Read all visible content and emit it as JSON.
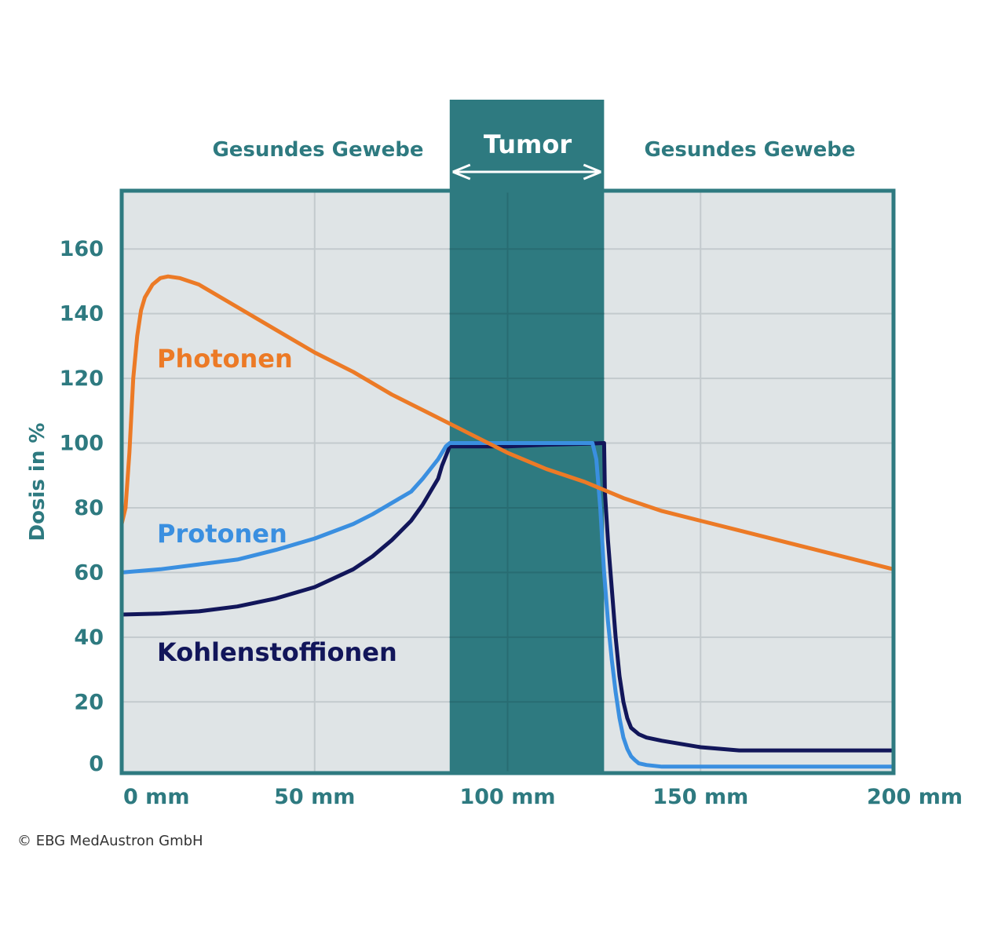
{
  "chart_data": {
    "type": "line",
    "ylabel": "Dosis in %",
    "xlabel": "",
    "xlim": [
      0,
      200
    ],
    "ylim": [
      -2,
      178
    ],
    "x_ticks": [
      {
        "value": 0,
        "label": "0 mm"
      },
      {
        "value": 50,
        "label": "50 mm"
      },
      {
        "value": 100,
        "label": "100 mm"
      },
      {
        "value": 150,
        "label": "150 mm"
      },
      {
        "value": 200,
        "label": "200 mm"
      }
    ],
    "y_ticks": [
      0,
      20,
      40,
      60,
      80,
      100,
      120,
      140,
      160
    ],
    "grid": true,
    "region": {
      "label": "Tumor",
      "x_start": 85,
      "x_end": 125,
      "color": "#2e7a80"
    },
    "region_captions": [
      "Gesundes Gewebe",
      "Gesundes Gewebe"
    ],
    "series": [
      {
        "name": "Photonen",
        "color": "#ec7a26",
        "x": [
          0,
          1,
          2,
          3,
          4,
          5,
          6,
          8,
          10,
          12,
          15,
          20,
          30,
          40,
          50,
          60,
          70,
          80,
          90,
          100,
          110,
          120,
          130,
          140,
          150,
          160,
          170,
          180,
          190,
          200
        ],
        "values": [
          75,
          80,
          97,
          120,
          133,
          141,
          145,
          149,
          151,
          151.5,
          151,
          149,
          142,
          135,
          128,
          122,
          115,
          109,
          103,
          97,
          92,
          88,
          83,
          79,
          76,
          73,
          70,
          67,
          64,
          61
        ]
      },
      {
        "name": "Protonen",
        "color": "#3a8fe0",
        "x": [
          0,
          10,
          20,
          30,
          40,
          50,
          60,
          65,
          70,
          75,
          78,
          80,
          82,
          84,
          85,
          90,
          100,
          110,
          120,
          122,
          123,
          124,
          125,
          126,
          127,
          128,
          129,
          130,
          131,
          132,
          133,
          134,
          136,
          140,
          200
        ],
        "values": [
          60,
          61,
          62.5,
          64,
          67,
          70.5,
          75,
          78,
          81.5,
          85,
          89,
          92,
          95,
          99,
          100,
          100,
          100,
          100,
          100,
          100,
          95,
          80,
          60,
          45,
          33,
          23,
          15,
          9,
          5.5,
          3.2,
          2,
          1,
          0.5,
          0,
          0
        ]
      },
      {
        "name": "Kohlenstoffionen",
        "color": "#12165a",
        "x": [
          0,
          10,
          20,
          30,
          40,
          50,
          60,
          65,
          70,
          75,
          78,
          80,
          82,
          83,
          84,
          85,
          90,
          100,
          110,
          120,
          125,
          125.2,
          126,
          127,
          128,
          129,
          130,
          131,
          132,
          134,
          136,
          140,
          150,
          160,
          200
        ],
        "values": [
          47,
          47.3,
          48,
          49.5,
          52,
          55.5,
          61,
          65,
          70,
          76,
          81,
          85,
          89,
          93,
          96,
          99,
          99,
          99,
          99.5,
          99.8,
          100,
          85,
          70,
          55,
          40,
          28,
          20,
          15,
          12,
          10,
          9,
          8,
          6,
          5,
          5
        ]
      }
    ]
  },
  "labels": {
    "tumor": "Tumor",
    "healthy_left": "Gesundes Gewebe",
    "healthy_right": "Gesundes Gewebe",
    "photonen": "Photonen",
    "protonen": "Protonen",
    "kohlenstoff": "Kohlenstoffionen",
    "copyright": "© EBG MedAustron GmbH"
  },
  "colors": {
    "frame": "#2e7a80",
    "plot_bg": "#dfe4e6",
    "grid": "#c3cacd",
    "tick_text": "#2e7a80",
    "tumor_bg": "#2e7a80",
    "tumor_grid": "#286c72"
  }
}
